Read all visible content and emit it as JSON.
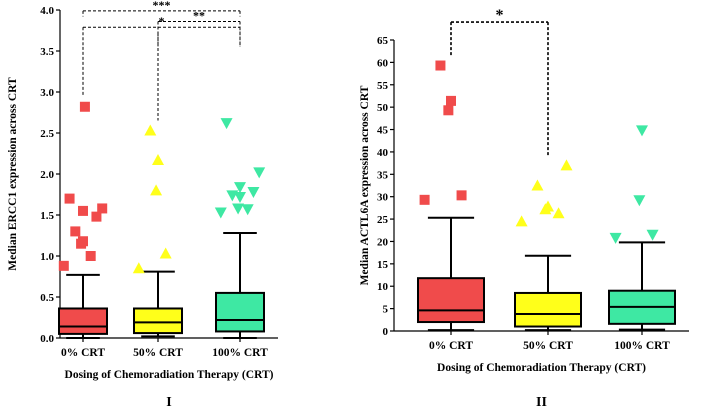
{
  "chart_data": [
    {
      "type": "box",
      "panel_label": "I",
      "xlabel": "Dosing of Chemoradiation Therapy (CRT)",
      "ylabel": "Median ERCC1 expression across CRT",
      "ylim": [
        0,
        4
      ],
      "yticks": [
        "0.0",
        "0.5",
        "1.0",
        "1.5",
        "2.0",
        "2.5",
        "3.0",
        "3.5",
        "4.0"
      ],
      "categories": [
        "0% CRT",
        "50% CRT",
        "100% CRT"
      ],
      "boxes": [
        {
          "category": "0% CRT",
          "color": "#f04b4b",
          "marker": "square",
          "whisker_low": 0.0,
          "q1": 0.05,
          "median": 0.14,
          "q3": 0.36,
          "whisker_high": 0.77,
          "outliers": [
            0.88,
            1.0,
            1.15,
            1.18,
            1.3,
            1.48,
            1.55,
            1.58,
            1.7,
            2.82
          ]
        },
        {
          "category": "50% CRT",
          "color": "#ffff1a",
          "marker": "triangle-up",
          "whisker_low": 0.02,
          "q1": 0.06,
          "median": 0.19,
          "q3": 0.36,
          "whisker_high": 0.81,
          "outliers": [
            0.85,
            1.03,
            1.8,
            2.17,
            2.53
          ]
        },
        {
          "category": "100% CRT",
          "color": "#3ee8a3",
          "marker": "triangle-down",
          "whisker_low": 0.0,
          "q1": 0.08,
          "median": 0.22,
          "q3": 0.55,
          "whisker_high": 1.28,
          "outliers": [
            1.53,
            1.57,
            1.58,
            1.72,
            1.74,
            1.78,
            1.84,
            2.02,
            2.62
          ]
        }
      ],
      "significance": [
        {
          "from": "0% CRT",
          "to": "100% CRT",
          "label": "***",
          "y": 3.99
        },
        {
          "from": "0% CRT",
          "to": "100% CRT",
          "label": "*",
          "y": 3.79
        },
        {
          "from": "50% CRT",
          "to": "100% CRT",
          "label": "**",
          "y": 3.86
        }
      ]
    },
    {
      "type": "box",
      "panel_label": "II",
      "xlabel": "Dosing of Chemoradiation Therapy (CRT)",
      "ylabel": "Median ACTL6A expression across CRT",
      "ylim": [
        0,
        65
      ],
      "yticks": [
        "0",
        "5",
        "10",
        "15",
        "20",
        "25",
        "30",
        "35",
        "40",
        "45",
        "50",
        "55",
        "60",
        "65"
      ],
      "categories": [
        "0% CRT",
        "50% CRT",
        "100% CRT"
      ],
      "boxes": [
        {
          "category": "0% CRT",
          "color": "#f04b4b",
          "marker": "square",
          "whisker_low": 0.2,
          "q1": 2.0,
          "median": 4.6,
          "q3": 11.8,
          "whisker_high": 25.3,
          "outliers": [
            29.3,
            30.3,
            49.3,
            51.4,
            59.3
          ]
        },
        {
          "category": "50% CRT",
          "color": "#ffff1a",
          "marker": "triangle-up",
          "whisker_low": 0.2,
          "q1": 1.0,
          "median": 3.8,
          "q3": 8.5,
          "whisker_high": 16.8,
          "outliers": [
            24.5,
            26.3,
            27.2,
            27.8,
            32.5,
            37.0
          ]
        },
        {
          "category": "100% CRT",
          "color": "#3ee8a3",
          "marker": "triangle-down",
          "whisker_low": 0.3,
          "q1": 1.6,
          "median": 5.4,
          "q3": 9.0,
          "whisker_high": 19.8,
          "outliers": [
            20.8,
            21.5,
            29.2,
            44.8
          ]
        }
      ],
      "significance": [
        {
          "from": "0% CRT",
          "to": "50% CRT",
          "label": "*",
          "y": 69.0
        }
      ]
    }
  ]
}
